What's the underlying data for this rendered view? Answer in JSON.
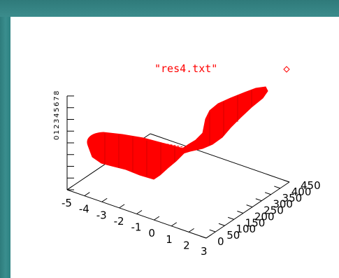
{
  "chart_data": {
    "type": "surface3d",
    "legend": {
      "label": "\"res4.txt\"",
      "marker": "diamond",
      "color": "#ff0000"
    },
    "x_axis": {
      "ticks": [
        "-5",
        "-4",
        "-3",
        "-2",
        "-1",
        "0",
        "1",
        "2",
        "3"
      ],
      "range": [
        -5,
        3
      ]
    },
    "y_axis": {
      "ticks": [
        "0",
        "50",
        "100",
        "150",
        "200",
        "250",
        "300",
        "350",
        "400",
        "450"
      ],
      "range": [
        0,
        450
      ]
    },
    "z_axis": {
      "ticks": [
        "0",
        "1",
        "2",
        "3",
        "4",
        "5",
        "6",
        "7",
        "8"
      ]
    },
    "surface_color": "#ff0000",
    "grid": false
  }
}
